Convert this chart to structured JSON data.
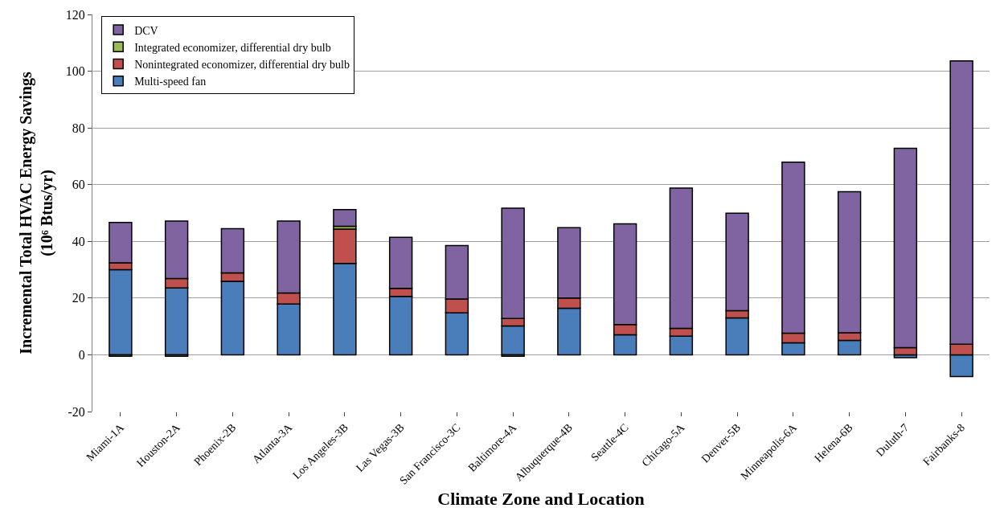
{
  "chart_data": {
    "type": "bar",
    "stacked": true,
    "xlabel": "Climate Zone and Location",
    "ylabel": "Incremental Total HVAC Energy Savings\n(10⁶ Btus/yr)",
    "categories": [
      "Miami-1A",
      "Houston-2A",
      "Phoenix-2B",
      "Atlanta-3A",
      "Los Angeles-3B",
      "Las Vegas-3B",
      "San Francisco-3C",
      "Baltimore-4A",
      "Albuquerque-4B",
      "Seattle-4C",
      "Chicago-5A",
      "Denver-5B",
      "Minneapolis-6A",
      "Helena-6B",
      "Duluth-7",
      "Fairbanks-8"
    ],
    "series": [
      {
        "name": "Multi-speed fan",
        "color": "#4a7ebb",
        "values": [
          30.0,
          23.6,
          25.9,
          17.9,
          32.2,
          20.6,
          14.8,
          10.2,
          16.4,
          7.1,
          6.6,
          13.0,
          4.2,
          5.1,
          -1.0,
          -7.7
        ]
      },
      {
        "name": "Nonintegrated economizer, differential dry bulb",
        "color": "#c0504d",
        "values": [
          2.4,
          3.3,
          3.0,
          3.9,
          12.1,
          2.8,
          4.9,
          2.6,
          3.6,
          3.6,
          2.7,
          2.6,
          3.4,
          2.7,
          2.5,
          3.7
        ]
      },
      {
        "name": "Integrated economizer, differential dry bulb",
        "color": "#9bbb59",
        "values": [
          -0.5,
          -0.5,
          null,
          null,
          1.0,
          null,
          null,
          -0.5,
          null,
          null,
          null,
          null,
          null,
          null,
          null,
          null
        ]
      },
      {
        "name": "DCV",
        "color": "#8064a2",
        "values": [
          14.3,
          20.3,
          15.6,
          25.4,
          5.9,
          18.0,
          18.8,
          38.9,
          24.8,
          35.5,
          49.5,
          34.3,
          60.3,
          49.7,
          70.3,
          99.9
        ]
      }
    ],
    "ylim": [
      -20,
      120
    ],
    "yticks": [
      -20,
      0,
      20,
      40,
      60,
      80,
      100,
      120
    ],
    "grid": "y",
    "legend": "top left"
  }
}
